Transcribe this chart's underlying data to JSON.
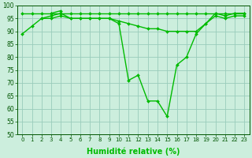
{
  "xlabel": "Humidité relative (%)",
  "ylim": [
    50,
    100
  ],
  "xlim": [
    -0.5,
    23.5
  ],
  "yticks": [
    50,
    55,
    60,
    65,
    70,
    75,
    80,
    85,
    90,
    95,
    100
  ],
  "xticks": [
    0,
    1,
    2,
    3,
    4,
    5,
    6,
    7,
    8,
    9,
    10,
    11,
    12,
    13,
    14,
    15,
    16,
    17,
    18,
    19,
    20,
    21,
    22,
    23
  ],
  "line_color": "#00bb00",
  "bg_color": "#cceedd",
  "grid_color": "#99ccbb",
  "line_width": 1.0,
  "marker": "D",
  "marker_size": 2.0,
  "series": {
    "main": {
      "x": [
        0,
        1,
        2,
        3,
        4,
        5,
        6,
        7,
        8,
        9,
        10,
        11,
        12,
        13,
        14,
        15,
        16,
        17,
        18,
        19,
        20,
        21,
        22,
        23
      ],
      "y": [
        89,
        92,
        95,
        96,
        97,
        95,
        95,
        95,
        95,
        95,
        93,
        71,
        73,
        63,
        63,
        57,
        77,
        80,
        89,
        93,
        97,
        96,
        97,
        97
      ]
    },
    "upper": {
      "x": [
        0,
        1,
        2,
        3,
        4,
        5,
        6,
        7,
        8,
        9,
        10,
        11,
        12,
        13,
        14,
        15,
        16,
        17,
        18,
        19,
        20,
        21,
        22,
        23
      ],
      "y": [
        97,
        97,
        97,
        97,
        97,
        97,
        97,
        97,
        97,
        97,
        97,
        97,
        97,
        97,
        97,
        97,
        97,
        97,
        97,
        97,
        97,
        97,
        97,
        97
      ]
    },
    "mid": {
      "x": [
        2,
        3,
        4,
        5,
        6,
        7,
        8,
        9,
        10,
        11,
        12,
        13,
        14,
        15,
        16,
        17,
        18,
        19,
        20,
        21,
        22,
        23
      ],
      "y": [
        95,
        95,
        96,
        95,
        95,
        95,
        95,
        95,
        94,
        93,
        92,
        91,
        91,
        90,
        90,
        90,
        90,
        93,
        96,
        95,
        96,
        96
      ]
    },
    "spike": {
      "x": [
        3,
        4
      ],
      "y": [
        97,
        98
      ]
    }
  },
  "xlabel_fontsize": 7,
  "xlabel_fontweight": "bold",
  "tick_fontsize": 5,
  "ytick_fontsize": 5.5
}
